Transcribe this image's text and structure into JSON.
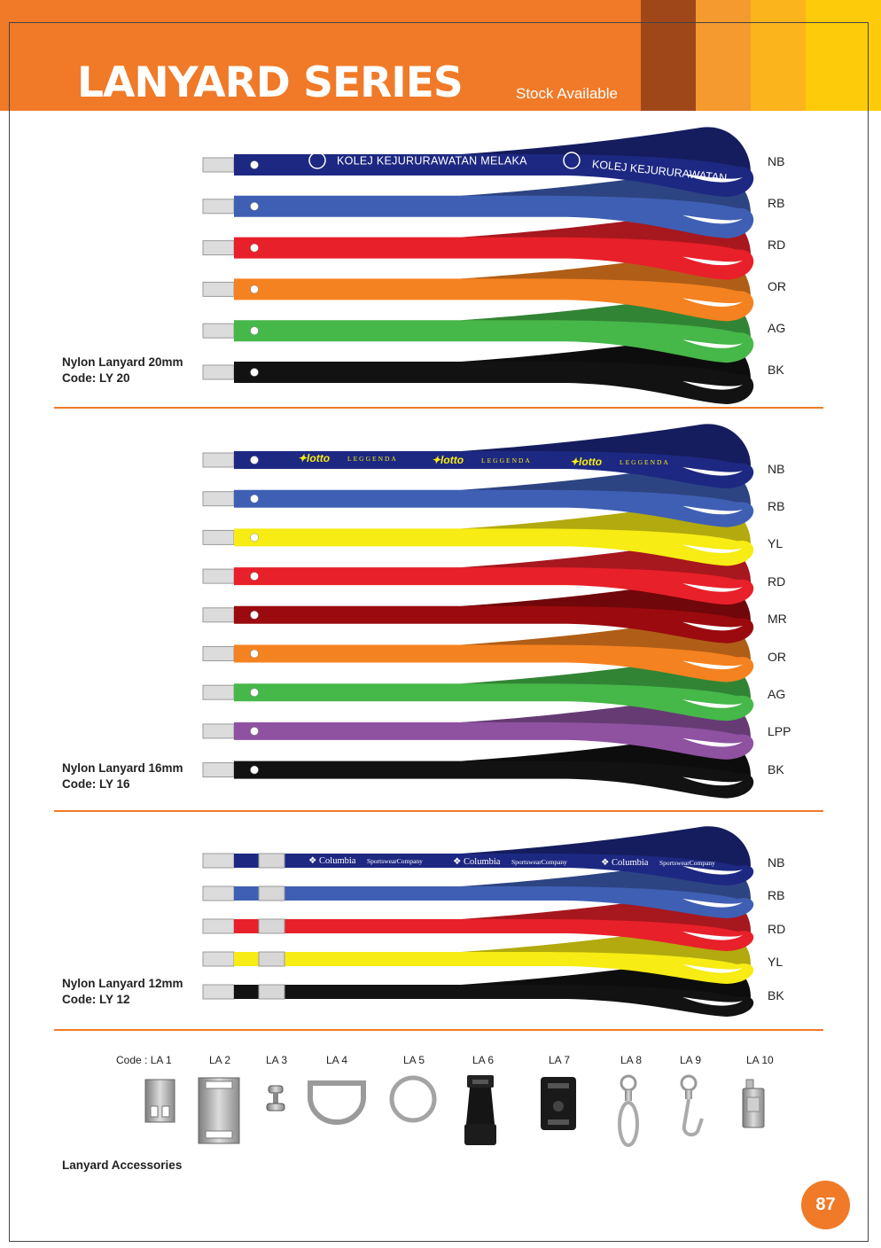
{
  "header": {
    "title": "LANYARD SERIES",
    "subtitle": "Stock Available"
  },
  "series": [
    {
      "name": "Nylon Lanyard 20mm",
      "code": "Code: LY 20",
      "colors": [
        {
          "code": "NB",
          "color": "#1d2882"
        },
        {
          "code": "RB",
          "color": "#3f5fb4"
        },
        {
          "code": "RD",
          "color": "#e8202a"
        },
        {
          "code": "OR",
          "color": "#f58220"
        },
        {
          "code": "AG",
          "color": "#46b749"
        },
        {
          "code": "BK",
          "color": "#121212"
        }
      ],
      "print_text": [
        "KOLEJ KEJURURAWATAN MELAKA",
        "KOLEJ KEJURURAWATAN"
      ]
    },
    {
      "name": "Nylon Lanyard 16mm",
      "code": "Code: LY 16",
      "colors": [
        {
          "code": "NB",
          "color": "#1d2882"
        },
        {
          "code": "RB",
          "color": "#3f5fb4"
        },
        {
          "code": "YL",
          "color": "#f7ec13"
        },
        {
          "code": "RD",
          "color": "#e8202a"
        },
        {
          "code": "MR",
          "color": "#9b0a0e"
        },
        {
          "code": "OR",
          "color": "#f58220"
        },
        {
          "code": "AG",
          "color": "#46b749"
        },
        {
          "code": "LPP",
          "color": "#8e52a1"
        },
        {
          "code": "BK",
          "color": "#121212"
        }
      ],
      "print_brand": "lotto",
      "print_sub": "LEGGENDA"
    },
    {
      "name": "Nylon Lanyard 12mm",
      "code": "Code: LY 12",
      "colors": [
        {
          "code": "NB",
          "color": "#1d2882"
        },
        {
          "code": "RB",
          "color": "#3f5fb4"
        },
        {
          "code": "RD",
          "color": "#e8202a"
        },
        {
          "code": "YL",
          "color": "#f7ec13"
        },
        {
          "code": "BK",
          "color": "#121212"
        }
      ],
      "print_brand": "Columbia",
      "print_sub": "SportswearCompany"
    }
  ],
  "accessories": {
    "title": "Lanyard Accessories",
    "items": [
      {
        "code": "Code : LA 1",
        "icon": "metal-clip-icon"
      },
      {
        "code": "LA 2",
        "icon": "wide-metal-clip-icon"
      },
      {
        "code": "LA 3",
        "icon": "rivet-icon"
      },
      {
        "code": "LA 4",
        "icon": "d-ring-icon"
      },
      {
        "code": "LA 5",
        "icon": "split-ring-icon"
      },
      {
        "code": "LA 6",
        "icon": "buckle-icon"
      },
      {
        "code": "LA 7",
        "icon": "connector-icon"
      },
      {
        "code": "LA 8",
        "icon": "swivel-hook-icon"
      },
      {
        "code": "LA 9",
        "icon": "snap-hook-icon"
      },
      {
        "code": "LA 10",
        "icon": "badge-clip-icon"
      }
    ]
  },
  "page_number": "87"
}
